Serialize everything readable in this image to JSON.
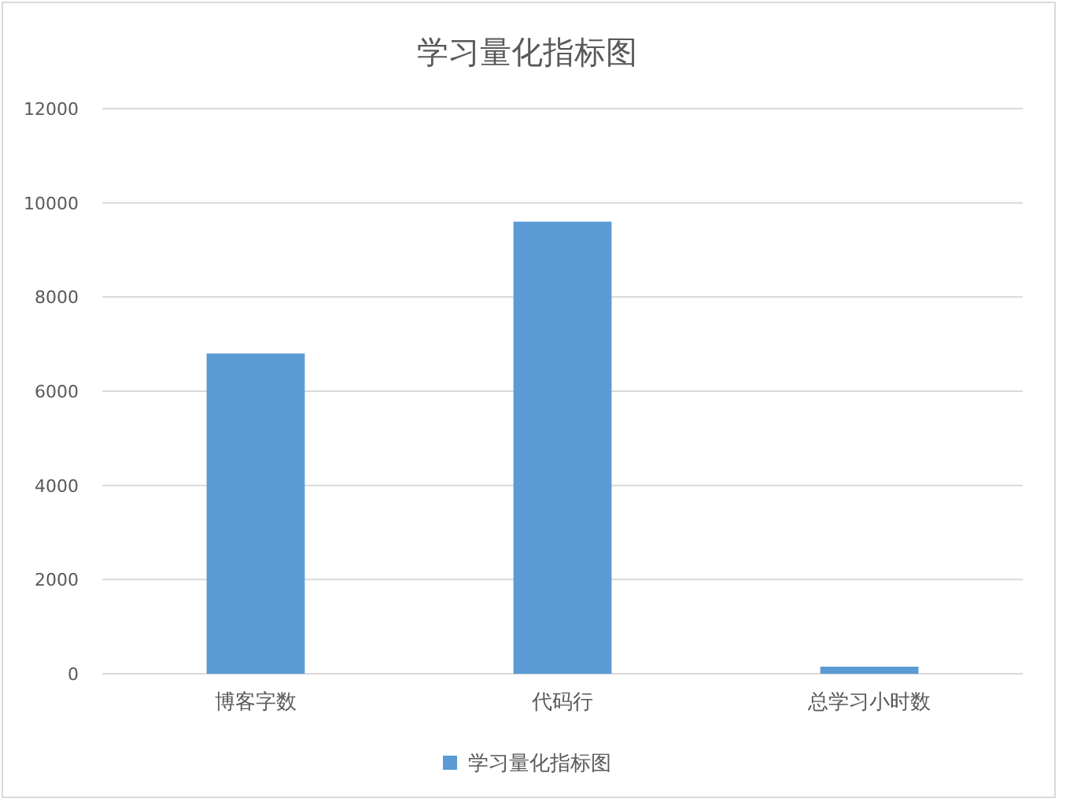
{
  "chart_data": {
    "type": "bar",
    "title": "学习量化指标图",
    "categories": [
      "博客字数",
      "代码行",
      "总学习小时数"
    ],
    "series": [
      {
        "name": "学习量化指标图",
        "color": "#5b9bd5",
        "values": [
          6800,
          9600,
          150
        ]
      }
    ],
    "ylim": [
      0,
      12000
    ],
    "yticks": [
      0,
      2000,
      4000,
      6000,
      8000,
      10000,
      12000
    ],
    "grid": "y",
    "legend": "bottom"
  }
}
